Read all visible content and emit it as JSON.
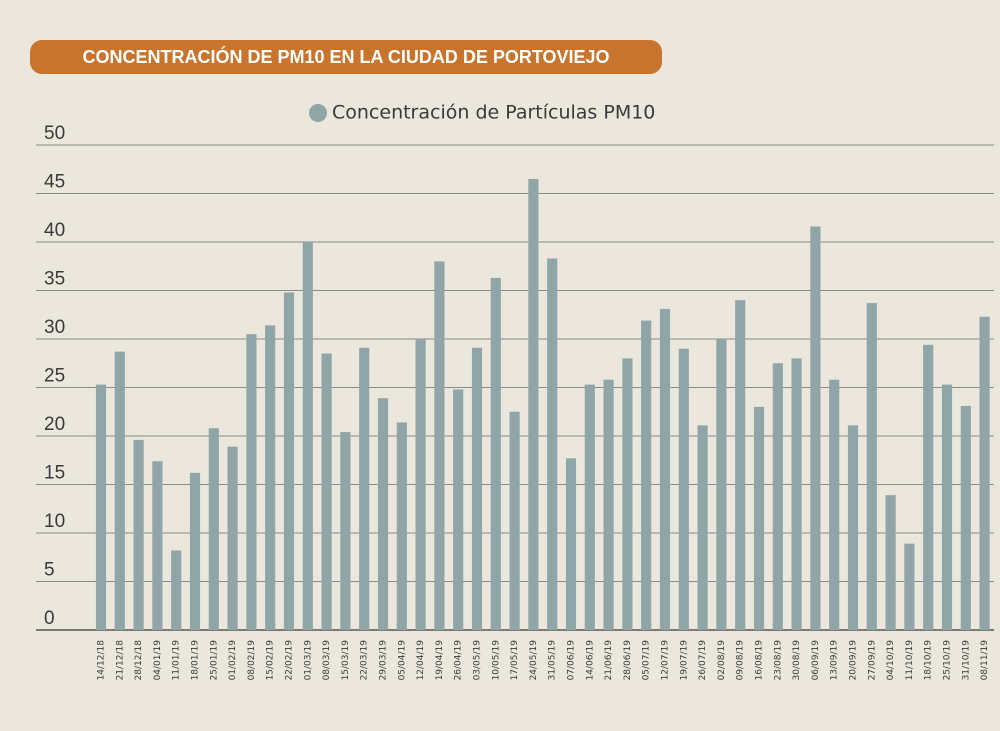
{
  "chart_data": {
    "type": "bar",
    "title": "CONCENTRACIÓN DE PM10 EN LA CIUDAD DE PORTOVIEJO",
    "categories": [
      "14/12/18",
      "21/12/18",
      "28/12/18",
      "04/01/19",
      "11/01/19",
      "18/01/19",
      "25/01/19",
      "01/02/19",
      "08/02/19",
      "15/02/19",
      "22/02/19",
      "01/03/19",
      "08/03/19",
      "15/03/19",
      "22/03/19",
      "29/03/19",
      "05/04/19",
      "12/04/19",
      "19/04/19",
      "26/04/19",
      "03/05/19",
      "10/05/19",
      "17/05/19",
      "24/05/19",
      "31/05/19",
      "07/06/19",
      "14/06/19",
      "21/06/19",
      "28/06/19",
      "05/07/19",
      "12/07/19",
      "19/07/19",
      "26/07/19",
      "02/08/19",
      "09/08/19",
      "16/08/19",
      "23/08/19",
      "30/08/19",
      "06/09/19",
      "13/09/19",
      "20/09/19",
      "27/09/19",
      "04/10/19",
      "11/10/19",
      "18/10/19",
      "25/10/19",
      "31/10/19",
      "08/11/19"
    ],
    "series": [
      {
        "name": "Concentración de Partículas PM10",
        "color": "#8fa5a8",
        "values": [
          25.3,
          28.7,
          19.6,
          17.4,
          8.2,
          16.2,
          20.8,
          18.9,
          30.5,
          31.4,
          34.8,
          40.0,
          28.5,
          20.4,
          29.1,
          23.9,
          21.4,
          30.0,
          38.0,
          24.8,
          29.1,
          36.3,
          22.5,
          46.5,
          38.3,
          17.7,
          25.3,
          25.8,
          28.0,
          31.9,
          33.1,
          29.0,
          21.1,
          30.0,
          34.0,
          23.0,
          27.5,
          28.0,
          41.6,
          25.8,
          21.1,
          33.7,
          13.9,
          8.9,
          29.4,
          25.3,
          23.1,
          32.3
        ]
      }
    ],
    "ylim": [
      0,
      50
    ],
    "yticks": [
      0,
      5,
      10,
      15,
      20,
      25,
      30,
      35,
      40,
      45,
      50
    ],
    "grid": true,
    "legend": "top"
  }
}
